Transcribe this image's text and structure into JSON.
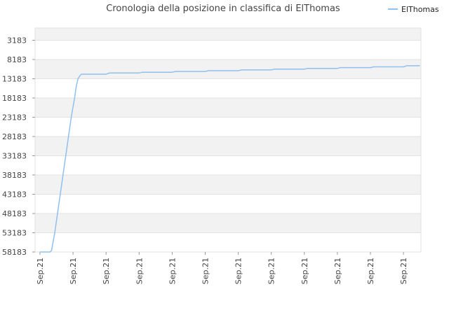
{
  "chart_data": {
    "type": "line",
    "title": "Cronologia della posizione in classifica di ElThomas",
    "legend": {
      "position": "top-right",
      "entries": [
        "ElThomas"
      ]
    },
    "y_axis": {
      "inverted": true,
      "ylim": [
        58183,
        0
      ],
      "ticks": [
        "3183",
        "8183",
        "13183",
        "18183",
        "23183",
        "28183",
        "33183",
        "38183",
        "43183",
        "48183",
        "53183",
        "58183"
      ]
    },
    "x_axis": {
      "ticks": [
        "Sep.21",
        "Sep.21",
        "Sep.21",
        "Sep.21",
        "Sep.21",
        "Sep.21",
        "Sep.21",
        "Sep.21",
        "Sep.21",
        "Sep.21",
        "Sep.21",
        "Sep.21"
      ]
    },
    "grid": true,
    "series": [
      {
        "name": "ElThomas",
        "color": "#90c0ee",
        "points": [
          [
            0.0,
            58183
          ],
          [
            0.3,
            58183
          ],
          [
            0.35,
            57800
          ],
          [
            0.45,
            53000
          ],
          [
            0.55,
            47000
          ],
          [
            0.65,
            41000
          ],
          [
            0.75,
            35000
          ],
          [
            0.85,
            29000
          ],
          [
            0.95,
            23000
          ],
          [
            1.05,
            18000
          ],
          [
            1.1,
            15000
          ],
          [
            1.15,
            13200
          ],
          [
            1.2,
            12500
          ],
          [
            1.25,
            12000
          ],
          [
            2.0,
            12000
          ],
          [
            2.1,
            11700
          ],
          [
            3.0,
            11700
          ],
          [
            3.1,
            11500
          ],
          [
            4.0,
            11500
          ],
          [
            4.1,
            11300
          ],
          [
            5.0,
            11300
          ],
          [
            5.1,
            11100
          ],
          [
            6.0,
            11100
          ],
          [
            6.1,
            10900
          ],
          [
            7.0,
            10900
          ],
          [
            7.1,
            10700
          ],
          [
            8.0,
            10700
          ],
          [
            8.1,
            10500
          ],
          [
            9.0,
            10500
          ],
          [
            9.1,
            10300
          ],
          [
            10.0,
            10300
          ],
          [
            10.1,
            10100
          ],
          [
            11.0,
            10100
          ],
          [
            11.1,
            9800
          ],
          [
            11.5,
            9800
          ]
        ]
      }
    ]
  }
}
